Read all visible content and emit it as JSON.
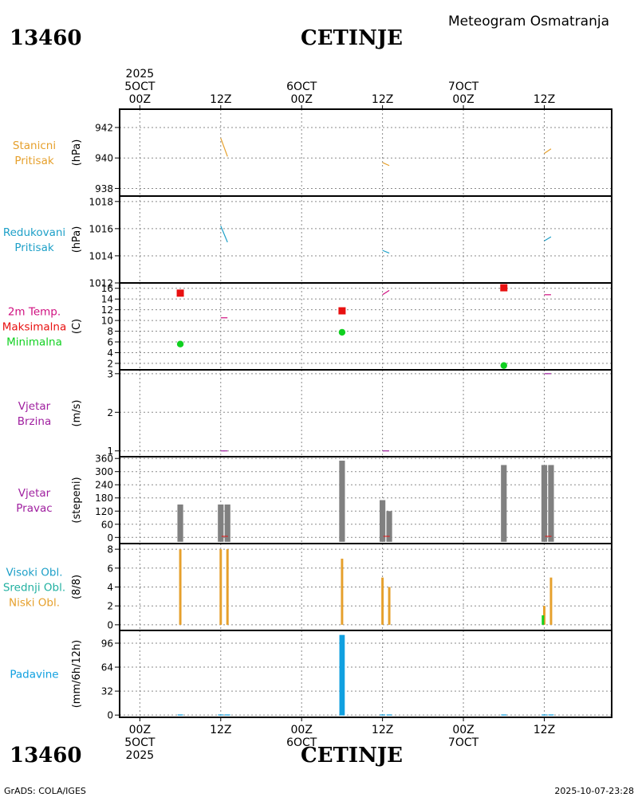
{
  "header": {
    "station_id": "13460",
    "station_name": "CETINJE",
    "product": "Meteogram Osmatranja"
  },
  "footer": {
    "credit": "GrADS: COLA/IGES",
    "timestamp": "2025-10-07-23:28"
  },
  "time_axis": {
    "top_labels": [
      {
        "t": 0,
        "lines": [
          "2025",
          "5OCT",
          "00Z"
        ]
      },
      {
        "t": 12,
        "lines": [
          "12Z"
        ]
      },
      {
        "t": 24,
        "lines": [
          "6OCT",
          "00Z"
        ]
      },
      {
        "t": 36,
        "lines": [
          "12Z"
        ]
      },
      {
        "t": 48,
        "lines": [
          "7OCT",
          "00Z"
        ]
      },
      {
        "t": 60,
        "lines": [
          "12Z"
        ]
      }
    ],
    "bottom_labels": [
      {
        "t": 0,
        "lines": [
          "00Z",
          "5OCT",
          "2025"
        ]
      },
      {
        "t": 12,
        "lines": [
          "12Z"
        ]
      },
      {
        "t": 24,
        "lines": [
          "00Z",
          "6OCT"
        ]
      },
      {
        "t": 36,
        "lines": [
          "12Z"
        ]
      },
      {
        "t": 48,
        "lines": [
          "00Z",
          "7OCT"
        ]
      },
      {
        "t": 60,
        "lines": [
          "12Z"
        ]
      }
    ],
    "range_hours": [
      -3,
      70
    ]
  },
  "colors": {
    "orange": "#e6a02c",
    "cyan": "#1ea0c8",
    "red": "#e81010",
    "green": "#10d020",
    "purple": "#a020a0",
    "magenta": "#d01080",
    "gray": "#808080",
    "gold": "#e6a02c",
    "teal": "#20b0a0",
    "precip": "#10a0e0"
  },
  "chart_data": [
    {
      "id": "station-pressure",
      "type": "line",
      "labels": [
        "Stanicni",
        "Pritisak"
      ],
      "label_colors": [
        "orange",
        "orange"
      ],
      "ylabel": "(hPa)",
      "ylim": [
        937.5,
        943.2
      ],
      "yticks": [
        938,
        940,
        942
      ],
      "series": [
        {
          "color": "orange",
          "segments": [
            [
              [
                12,
                941.3
              ],
              [
                13,
                940.1
              ]
            ],
            [
              [
                36,
                939.7
              ],
              [
                37,
                939.5
              ]
            ],
            [
              [
                60,
                940.3
              ],
              [
                61,
                940.6
              ]
            ]
          ]
        }
      ]
    },
    {
      "id": "reduced-pressure",
      "type": "line",
      "labels": [
        "Redukovani",
        "Pritisak"
      ],
      "label_colors": [
        "cyan",
        "cyan"
      ],
      "ylabel": "(hPa)",
      "ylim": [
        1012,
        1018.4
      ],
      "yticks": [
        1012,
        1014,
        1016,
        1018
      ],
      "series": [
        {
          "color": "cyan",
          "segments": [
            [
              [
                12,
                1016.2
              ],
              [
                13,
                1015
              ]
            ],
            [
              [
                36,
                1014.4
              ],
              [
                37,
                1014.2
              ]
            ],
            [
              [
                60,
                1015.1
              ],
              [
                61,
                1015.4
              ]
            ]
          ]
        }
      ]
    },
    {
      "id": "temperature",
      "type": "scatter",
      "labels": [
        "2m Temp.",
        "Maksimalna",
        "Minimalna"
      ],
      "label_colors": [
        "magenta",
        "red",
        "green"
      ],
      "ylabel": "(C)",
      "ylim": [
        0.8,
        17
      ],
      "yticks": [
        2,
        4,
        6,
        8,
        10,
        12,
        14,
        16
      ],
      "series": [
        {
          "name": "temp",
          "color": "magenta",
          "segments": [
            [
              [
                12,
                10.5
              ],
              [
                13,
                10.5
              ]
            ],
            [
              [
                36,
                14.8
              ],
              [
                37,
                15.6
              ]
            ],
            [
              [
                60,
                14.8
              ],
              [
                61,
                14.8
              ]
            ]
          ]
        }
      ],
      "max_points": [
        {
          "t": 6,
          "v": 15.1
        },
        {
          "t": 30,
          "v": 11.8
        },
        {
          "t": 54,
          "v": 16.1
        }
      ],
      "min_points": [
        {
          "t": 6,
          "v": 5.6
        },
        {
          "t": 30,
          "v": 7.8
        },
        {
          "t": 54,
          "v": 1.6
        }
      ]
    },
    {
      "id": "wind-speed",
      "type": "line",
      "labels": [
        "Vjetar",
        "Brzina"
      ],
      "label_colors": [
        "purple",
        "purple"
      ],
      "ylabel": "(m/s)",
      "ylim": [
        0.85,
        3.1
      ],
      "yticks": [
        1,
        2,
        3
      ],
      "series": [
        {
          "color": "purple",
          "segments": [
            [
              [
                12,
                1
              ],
              [
                13,
                1
              ]
            ],
            [
              [
                36,
                1
              ],
              [
                37,
                1
              ]
            ],
            [
              [
                60,
                3
              ],
              [
                61,
                3
              ]
            ]
          ]
        }
      ]
    },
    {
      "id": "wind-direction",
      "type": "bar",
      "labels": [
        "Vjetar",
        "Pravac"
      ],
      "label_colors": [
        "purple",
        "purple"
      ],
      "ylabel": "(stepeni)",
      "ylim": [
        -28,
        368
      ],
      "yticks": [
        0,
        60,
        120,
        180,
        240,
        300,
        360
      ],
      "bars": [
        {
          "t": 6,
          "v": 150,
          "color": "gray"
        },
        {
          "t": 12,
          "v": 150,
          "color": "gray"
        },
        {
          "t": 13,
          "v": 150,
          "color": "gray"
        },
        {
          "t": 30,
          "v": 350,
          "color": "gray"
        },
        {
          "t": 36,
          "v": 170,
          "color": "gray"
        },
        {
          "t": 37,
          "v": 120,
          "color": "gray"
        },
        {
          "t": 54,
          "v": 330,
          "color": "gray"
        },
        {
          "t": 60,
          "v": 330,
          "color": "gray"
        },
        {
          "t": 61,
          "v": 330,
          "color": "gray"
        }
      ],
      "bar_width": 0.85,
      "bar_base": -20,
      "marks": [
        {
          "t": 12.6,
          "v": 5,
          "color": "red"
        },
        {
          "t": 36.6,
          "v": 5,
          "color": "red"
        },
        {
          "t": 60.6,
          "v": 5,
          "color": "red"
        }
      ]
    },
    {
      "id": "cloud-cover",
      "type": "bar",
      "labels": [
        "Visoki Obl.",
        "Srednji Obl.",
        "Niski Obl."
      ],
      "label_colors": [
        "cyan",
        "teal",
        "gold"
      ],
      "ylabel": "(8/8)",
      "ylim": [
        -0.6,
        8.6
      ],
      "yticks": [
        0,
        2,
        4,
        6,
        8
      ],
      "bars": [
        {
          "t": 6,
          "v": 8,
          "color": "gold"
        },
        {
          "t": 12,
          "v": 8,
          "color": "gold"
        },
        {
          "t": 13,
          "v": 8,
          "color": "gold"
        },
        {
          "t": 30,
          "v": 7,
          "color": "gold"
        },
        {
          "t": 36,
          "v": 5,
          "color": "gold"
        },
        {
          "t": 37,
          "v": 4,
          "color": "gold"
        },
        {
          "t": 60,
          "v": 2,
          "color": "gold"
        },
        {
          "t": 59.8,
          "v": 1,
          "color": "green"
        },
        {
          "t": 61,
          "v": 5,
          "color": "gold"
        }
      ],
      "bar_width": 0.35,
      "bar_base": 0
    },
    {
      "id": "precipitation",
      "type": "bar",
      "labels": [
        "Padavine"
      ],
      "label_colors": [
        "precip"
      ],
      "ylabel": "(mm/6h/12h)",
      "ylim": [
        -3,
        113
      ],
      "yticks": [
        0,
        32,
        64,
        96
      ],
      "bars": [
        {
          "t": 6,
          "v": 0.8,
          "color": "precip"
        },
        {
          "t": 12,
          "v": 0.8,
          "color": "precip"
        },
        {
          "t": 13,
          "v": 0.8,
          "color": "precip"
        },
        {
          "t": 30,
          "v": 107,
          "color": "precip"
        },
        {
          "t": 36,
          "v": 0.8,
          "color": "precip"
        },
        {
          "t": 37,
          "v": 0.8,
          "color": "precip"
        },
        {
          "t": 54,
          "v": 0.8,
          "color": "precip"
        },
        {
          "t": 60,
          "v": 0.8,
          "color": "precip"
        },
        {
          "t": 61,
          "v": 0.8,
          "color": "precip"
        }
      ],
      "bar_width": 0.8,
      "bar_base": -0.5
    }
  ]
}
